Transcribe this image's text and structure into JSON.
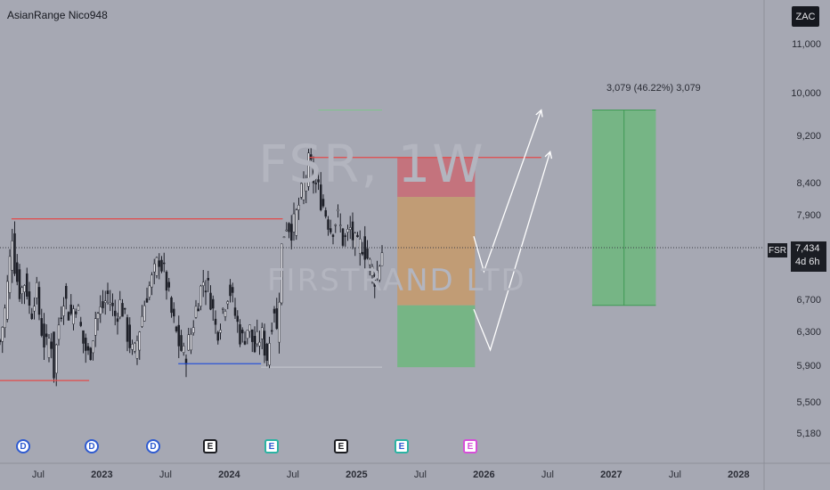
{
  "indicator_label": "AsianRange Nico948",
  "currency": "ZAC",
  "ticker": "FSR",
  "watermark": {
    "symbol": "FSR, 1W",
    "name": "FIRSTRAND LTD"
  },
  "last_price": "7,434",
  "countdown": "4d 6h",
  "measure_label": "3,079 (46.22%) 3,079",
  "colors": {
    "background": "#a6a8b3",
    "candle": "#1e2029",
    "resistance": "#e34a4a",
    "support": "#2b54d6",
    "stop_zone": "#c96a73",
    "mid_zone": "#c59a6a",
    "target_zone": "#6db77c",
    "projection": "#ffffff"
  },
  "events": [
    {
      "type": "D",
      "x_date": "2022.35"
    },
    {
      "type": "D",
      "x_date": "2022.83"
    },
    {
      "type": "D",
      "x_date": "2023.25"
    },
    {
      "type": "E",
      "x_date": "2023.85"
    },
    {
      "type": "E",
      "x_date": "2024.33"
    },
    {
      "type": "E",
      "x_date": "2024.80"
    },
    {
      "type": "E",
      "x_date": "2025.25"
    },
    {
      "type": "E",
      "x_date": "2025.70"
    }
  ],
  "chart_data": {
    "type": "candlestick",
    "title": "",
    "xlabel": "",
    "ylabel": "",
    "y_scale": "log",
    "ylim": [
      4900,
      12000
    ],
    "xlim": [
      2022.2,
      2028.2
    ],
    "y_ticks": [
      {
        "value": 11000,
        "label": "11,000"
      },
      {
        "value": 10000,
        "label": "10,000"
      },
      {
        "value": 9200,
        "label": "9,200"
      },
      {
        "value": 8400,
        "label": "8,400"
      },
      {
        "value": 7900,
        "label": "7,900"
      },
      {
        "value": 6700,
        "label": "6,700"
      },
      {
        "value": 6300,
        "label": "6,300"
      },
      {
        "value": 5900,
        "label": "5,900"
      },
      {
        "value": 5500,
        "label": "5,500"
      },
      {
        "value": 5180,
        "label": "5,180"
      }
    ],
    "x_ticks": [
      {
        "value": 2022.5,
        "label": "Jul",
        "bold": false
      },
      {
        "value": 2023.0,
        "label": "2023",
        "bold": true
      },
      {
        "value": 2023.5,
        "label": "Jul",
        "bold": false
      },
      {
        "value": 2024.0,
        "label": "2024",
        "bold": true
      },
      {
        "value": 2024.5,
        "label": "Jul",
        "bold": false
      },
      {
        "value": 2025.0,
        "label": "2025",
        "bold": true
      },
      {
        "value": 2025.5,
        "label": "Jul",
        "bold": false
      },
      {
        "value": 2026.0,
        "label": "2026",
        "bold": true
      },
      {
        "value": 2026.5,
        "label": "Jul",
        "bold": false
      },
      {
        "value": 2027.0,
        "label": "2027",
        "bold": true
      },
      {
        "value": 2027.5,
        "label": "Jul",
        "bold": false
      },
      {
        "value": 2028.0,
        "label": "2028",
        "bold": true
      }
    ],
    "price_path": [
      [
        2022.2,
        6200
      ],
      [
        2022.24,
        6600
      ],
      [
        2022.28,
        7300
      ],
      [
        2022.29,
        7800
      ],
      [
        2022.32,
        7100
      ],
      [
        2022.36,
        6800
      ],
      [
        2022.4,
        7000
      ],
      [
        2022.44,
        6500
      ],
      [
        2022.48,
        6900
      ],
      [
        2022.52,
        6400
      ],
      [
        2022.56,
        6100
      ],
      [
        2022.6,
        6300
      ],
      [
        2022.62,
        5800
      ],
      [
        2022.66,
        6400
      ],
      [
        2022.7,
        6800
      ],
      [
        2022.75,
        6500
      ],
      [
        2022.8,
        6700
      ],
      [
        2022.85,
        6200
      ],
      [
        2022.9,
        6000
      ],
      [
        2022.95,
        6500
      ],
      [
        2023.0,
        6600
      ],
      [
        2023.05,
        6800
      ],
      [
        2023.1,
        6500
      ],
      [
        2023.15,
        6700
      ],
      [
        2023.2,
        6300
      ],
      [
        2023.25,
        6000
      ],
      [
        2023.3,
        6400
      ],
      [
        2023.35,
        6800
      ],
      [
        2023.4,
        7000
      ],
      [
        2023.45,
        7300
      ],
      [
        2023.5,
        7000
      ],
      [
        2023.55,
        6500
      ],
      [
        2023.6,
        6200
      ],
      [
        2023.65,
        6000
      ],
      [
        2023.7,
        6300
      ],
      [
        2023.75,
        6700
      ],
      [
        2023.8,
        7000
      ],
      [
        2023.85,
        6800
      ],
      [
        2023.9,
        6300
      ],
      [
        2023.95,
        6600
      ],
      [
        2024.0,
        6900
      ],
      [
        2024.05,
        6500
      ],
      [
        2024.1,
        6200
      ],
      [
        2024.15,
        6400
      ],
      [
        2024.2,
        6100
      ],
      [
        2024.25,
        6300
      ],
      [
        2024.3,
        6000
      ],
      [
        2024.35,
        6700
      ],
      [
        2024.38,
        6200
      ],
      [
        2024.4,
        7200
      ],
      [
        2024.42,
        7600
      ],
      [
        2024.45,
        7800
      ],
      [
        2024.5,
        7700
      ],
      [
        2024.55,
        8100
      ],
      [
        2024.6,
        8500
      ],
      [
        2024.63,
        8800
      ],
      [
        2024.66,
        8500
      ],
      [
        2024.7,
        8300
      ],
      [
        2024.75,
        8000
      ],
      [
        2024.8,
        7700
      ],
      [
        2024.85,
        7900
      ],
      [
        2024.9,
        7500
      ],
      [
        2024.95,
        7700
      ],
      [
        2025.0,
        7400
      ],
      [
        2025.05,
        7500
      ],
      [
        2025.1,
        7200
      ],
      [
        2025.15,
        7000
      ],
      [
        2025.2,
        7400
      ]
    ],
    "annotations": [
      {
        "type": "hline",
        "y": 7860,
        "x0": 2022.29,
        "x1": 2024.42,
        "color": "resistance"
      },
      {
        "type": "hline",
        "y": 8850,
        "x0": 2024.63,
        "x1": 2026.45,
        "color": "resistance"
      },
      {
        "type": "hline",
        "y": 5750,
        "x0": 2022.2,
        "x1": 2022.9,
        "color": "resistance"
      },
      {
        "type": "hline",
        "y": 5940,
        "x0": 2023.6,
        "x1": 2024.25,
        "color": "support"
      },
      {
        "type": "zone",
        "x0": 2025.32,
        "x1": 2025.93,
        "y0": 8200,
        "y1": 8850,
        "color": "stop_zone"
      },
      {
        "type": "zone",
        "x0": 2025.32,
        "x1": 2025.93,
        "y0": 6650,
        "y1": 8200,
        "color": "mid_zone"
      },
      {
        "type": "zone",
        "x0": 2025.32,
        "x1": 2025.93,
        "y0": 5900,
        "y1": 6650,
        "color": "target_zone"
      },
      {
        "type": "zone",
        "x0": 2026.85,
        "x1": 2027.35,
        "y0": 6650,
        "y1": 9700,
        "color": "target_zone"
      },
      {
        "type": "projection",
        "points": [
          [
            2025.92,
            7600
          ],
          [
            2026.0,
            7100
          ],
          [
            2026.45,
            9700
          ]
        ]
      },
      {
        "type": "projection",
        "points": [
          [
            2025.92,
            6600
          ],
          [
            2026.05,
            6100
          ],
          [
            2026.52,
            8950
          ]
        ]
      }
    ]
  }
}
